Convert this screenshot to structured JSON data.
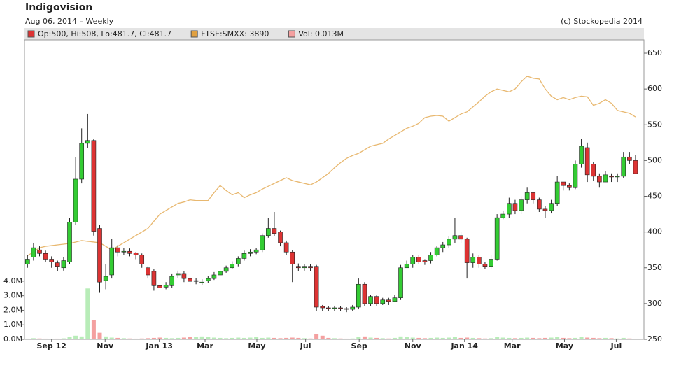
{
  "chart_data": {
    "type": "candlestick",
    "title": "Indigovision",
    "subtitle": "Aug 06, 2014 – Weekly",
    "credit": "(c) Stockopedia 2014",
    "legend": [
      "Op:500, Hi:508, Lo:481.7, Cl:481.7",
      "FTSE:SMXX: 3890",
      "Vol: 0.013M"
    ],
    "legend_colors": [
      "#dd3333",
      "#e0a040",
      "#f4a0a0"
    ],
    "x": [
      0,
      1,
      2,
      3,
      4,
      5,
      6,
      7,
      8,
      9,
      10,
      11,
      12,
      13,
      14,
      15,
      16,
      17,
      18,
      19,
      20,
      21,
      22,
      23,
      24,
      25,
      26,
      27,
      28,
      29,
      30,
      31,
      32,
      33,
      34,
      35,
      36,
      37,
      38,
      39,
      40,
      41,
      42,
      43,
      44,
      45,
      46,
      47,
      48,
      49,
      50,
      51,
      52,
      53,
      54,
      55,
      56,
      57,
      58,
      59,
      60,
      61,
      62,
      63,
      64,
      65,
      66,
      67,
      68,
      69,
      70,
      71,
      72,
      73,
      74,
      75,
      76,
      77,
      78,
      79,
      80,
      81,
      82,
      83,
      84,
      85,
      86,
      87,
      88,
      89,
      90,
      91,
      92,
      93,
      94,
      95,
      96,
      97,
      98,
      99,
      100,
      101
    ],
    "xlim": [
      -0.5,
      102.4
    ],
    "xticks": [
      {
        "value": 4,
        "label": "Sep 12"
      },
      {
        "value": 12.9,
        "label": "Nov"
      },
      {
        "value": 21.9,
        "label": "Jan 13"
      },
      {
        "value": 29.5,
        "label": "Mar"
      },
      {
        "value": 38.1,
        "label": "May"
      },
      {
        "value": 46.2,
        "label": "Jul"
      },
      {
        "value": 55.1,
        "label": "Sep"
      },
      {
        "value": 64,
        "label": "Nov"
      },
      {
        "value": 72.6,
        "label": "Jan 14"
      },
      {
        "value": 80.5,
        "label": "Mar"
      },
      {
        "value": 89.2,
        "label": "May"
      },
      {
        "value": 97.8,
        "label": "Jul"
      }
    ],
    "ylim": [
      250,
      668.6
    ],
    "yticks": [
      250,
      300,
      350,
      400,
      450,
      500,
      550,
      600,
      650
    ],
    "up_color": "#33cc33",
    "down_color": "#dd3333",
    "open": [
      355,
      365,
      375,
      370,
      362,
      357,
      350,
      358,
      414,
      474,
      524,
      528,
      405,
      332,
      340,
      378,
      372,
      373,
      371,
      368,
      350,
      345,
      325,
      323,
      325,
      340,
      342,
      335,
      331,
      330,
      332,
      335,
      340,
      345,
      350,
      355,
      363,
      370,
      372,
      375,
      395,
      405,
      400,
      385,
      372,
      352,
      350,
      352,
      352,
      296,
      294,
      293,
      294,
      293,
      292,
      295,
      327,
      300,
      310,
      300,
      305,
      303,
      308,
      350,
      355,
      365,
      360,
      360,
      368,
      378,
      382,
      390,
      395,
      390,
      357,
      365,
      355,
      352,
      362,
      420,
      425,
      440,
      430,
      445,
      455,
      445,
      432,
      430,
      440,
      470,
      465,
      462,
      495,
      518,
      495,
      478,
      470,
      478,
      477,
      478,
      505,
      500
    ],
    "high": [
      368,
      385,
      380,
      374,
      366,
      360,
      365,
      420,
      505,
      545,
      565,
      530,
      410,
      355,
      390,
      382,
      378,
      377,
      372,
      370,
      352,
      348,
      328,
      330,
      342,
      346,
      345,
      338,
      336,
      334,
      338,
      344,
      349,
      353,
      359,
      366,
      374,
      376,
      378,
      398,
      420,
      428,
      402,
      388,
      375,
      356,
      355,
      355,
      354,
      298,
      296,
      297,
      296,
      295,
      298,
      335,
      330,
      312,
      312,
      308,
      308,
      312,
      354,
      360,
      368,
      368,
      362,
      372,
      380,
      386,
      394,
      420,
      400,
      392,
      370,
      368,
      358,
      368,
      425,
      430,
      448,
      445,
      450,
      462,
      456,
      448,
      436,
      445,
      478,
      470,
      468,
      500,
      530,
      525,
      498,
      482,
      485,
      482,
      482,
      512,
      512,
      508
    ],
    "low": [
      350,
      360,
      366,
      358,
      350,
      345,
      346,
      355,
      410,
      468,
      518,
      395,
      315,
      320,
      335,
      366,
      368,
      366,
      362,
      350,
      335,
      318,
      318,
      320,
      322,
      336,
      330,
      326,
      327,
      326,
      329,
      333,
      338,
      343,
      348,
      352,
      360,
      366,
      369,
      372,
      392,
      394,
      380,
      368,
      330,
      345,
      346,
      345,
      290,
      290,
      290,
      290,
      290,
      288,
      290,
      292,
      296,
      296,
      296,
      298,
      298,
      302,
      305,
      350,
      350,
      355,
      354,
      356,
      366,
      372,
      378,
      385,
      385,
      335,
      350,
      350,
      348,
      348,
      360,
      418,
      420,
      425,
      425,
      440,
      440,
      428,
      420,
      426,
      436,
      458,
      458,
      460,
      490,
      470,
      472,
      462,
      470,
      470,
      470,
      475,
      495,
      481.7
    ],
    "close": [
      362,
      378,
      370,
      362,
      358,
      352,
      360,
      414,
      474,
      524,
      528,
      401,
      330,
      338,
      378,
      372,
      373,
      370,
      368,
      355,
      340,
      325,
      322,
      326,
      338,
      342,
      335,
      331,
      332,
      330,
      335,
      340,
      345,
      350,
      355,
      363,
      370,
      372,
      375,
      395,
      405,
      398,
      385,
      372,
      355,
      350,
      352,
      350,
      295,
      294,
      293,
      294,
      293,
      292,
      295,
      327,
      300,
      310,
      300,
      305,
      303,
      308,
      350,
      355,
      365,
      358,
      358,
      368,
      378,
      382,
      390,
      395,
      390,
      357,
      365,
      355,
      352,
      362,
      420,
      425,
      440,
      430,
      445,
      455,
      445,
      432,
      430,
      440,
      470,
      465,
      462,
      495,
      520,
      480,
      478,
      470,
      480,
      477,
      478,
      505,
      500,
      481.7
    ],
    "overlay": {
      "color": "#e8b870",
      "values": [
        367,
        372,
        378,
        380,
        381,
        382,
        383,
        384,
        386,
        388,
        387,
        386,
        385,
        380,
        375,
        380,
        385,
        390,
        395,
        400,
        405,
        415,
        425,
        430,
        435,
        440,
        442,
        445,
        444,
        444,
        444,
        455,
        465,
        458,
        452,
        455,
        448,
        452,
        455,
        460,
        464,
        468,
        472,
        476,
        472,
        470,
        468,
        466,
        470,
        476,
        482,
        490,
        497,
        503,
        507,
        510,
        515,
        520,
        522,
        524,
        530,
        535,
        540,
        545,
        548,
        552,
        560,
        562,
        563,
        562,
        555,
        560,
        565,
        568,
        575,
        582,
        590,
        596,
        600,
        598,
        596,
        600,
        610,
        618,
        615,
        614,
        600,
        590,
        585,
        588,
        585,
        588,
        590,
        589,
        577,
        580,
        585,
        580,
        570,
        568,
        566,
        561
      ]
    },
    "volume": {
      "up_color": "#b8ecb8",
      "down_color": "#f4a0a0",
      "ylim": [
        0,
        20.6
      ],
      "yticks": [
        {
          "value": 0,
          "label": "0.0M"
        },
        {
          "value": 1,
          "label": "1.0M"
        },
        {
          "value": 2,
          "label": "2.0M"
        },
        {
          "value": 3,
          "label": "3.0M"
        },
        {
          "value": 4,
          "label": "4.0M"
        }
      ],
      "values": [
        0.05,
        0.08,
        0.06,
        0.05,
        0.04,
        0.05,
        0.07,
        0.15,
        0.25,
        0.2,
        3.5,
        1.3,
        0.45,
        0.2,
        0.12,
        0.1,
        0.08,
        0.06,
        0.05,
        0.06,
        0.08,
        0.1,
        0.12,
        0.1,
        0.08,
        0.1,
        0.12,
        0.15,
        0.18,
        0.2,
        0.15,
        0.12,
        0.1,
        0.08,
        0.1,
        0.12,
        0.1,
        0.12,
        0.15,
        0.1,
        0.12,
        0.1,
        0.08,
        0.1,
        0.12,
        0.1,
        0.08,
        0.06,
        0.35,
        0.25,
        0.1,
        0.08,
        0.06,
        0.05,
        0.06,
        0.15,
        0.2,
        0.12,
        0.1,
        0.08,
        0.06,
        0.1,
        0.2,
        0.15,
        0.12,
        0.1,
        0.08,
        0.1,
        0.12,
        0.1,
        0.12,
        0.15,
        0.1,
        0.12,
        0.1,
        0.08,
        0.06,
        0.08,
        0.15,
        0.12,
        0.1,
        0.08,
        0.1,
        0.12,
        0.1,
        0.08,
        0.1,
        0.12,
        0.15,
        0.1,
        0.08,
        0.1,
        0.15,
        0.12,
        0.1,
        0.08,
        0.1,
        0.08,
        0.06,
        0.1,
        0.06,
        0.013
      ]
    }
  }
}
